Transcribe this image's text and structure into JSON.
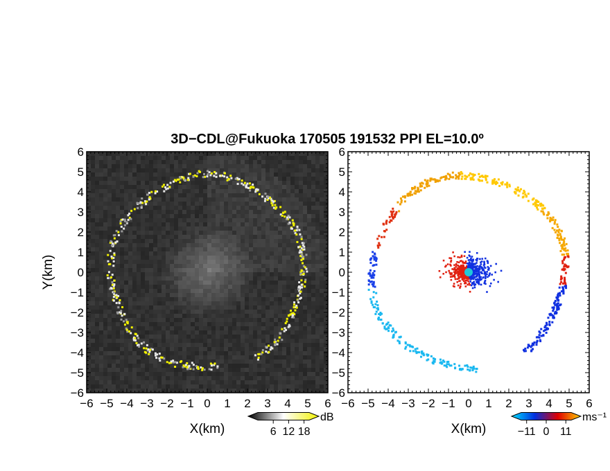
{
  "title": "3D−CDL@Fukuoka 170505 191532 PPI EL=10.0º",
  "chart_data": [
    {
      "type": "heatmap",
      "panel": "reflectivity",
      "xlabel": "X(km)",
      "ylabel": "Y(km)",
      "xlim": [
        -6,
        6
      ],
      "ylim": [
        -6,
        6
      ],
      "xticks": [
        "−6",
        "−5",
        "−4",
        "−3",
        "−2",
        "−1",
        "0",
        "1",
        "2",
        "3",
        "4",
        "5",
        "6"
      ],
      "yticks": [
        "−6",
        "−5",
        "−4",
        "−3",
        "−2",
        "−1",
        "0",
        "1",
        "2",
        "3",
        "4",
        "5",
        "6"
      ],
      "colorbar": {
        "unit": "dB",
        "ticks": [
          "6",
          "12",
          "18"
        ],
        "range": [
          0,
          20
        ],
        "colors": [
          "#000000",
          "#ffffff",
          "#f2f200"
        ]
      },
      "ring_radius_km": 4.8,
      "background": "#262626"
    },
    {
      "type": "scatter",
      "panel": "doppler_velocity",
      "xlabel": "X(km)",
      "xlim": [
        -6,
        6
      ],
      "ylim": [
        -6,
        6
      ],
      "xticks": [
        "−6",
        "−5",
        "−4",
        "−3",
        "−2",
        "−1",
        "0",
        "1",
        "2",
        "3",
        "4",
        "5",
        "6"
      ],
      "yticks": [
        "−6",
        "−5",
        "−4",
        "−3",
        "−2",
        "−1",
        "0",
        "1",
        "2",
        "3",
        "4",
        "5",
        "6"
      ],
      "colorbar": {
        "unit": "ms⁻¹",
        "ticks": [
          "−11",
          "0",
          "11"
        ],
        "range": [
          -14,
          14
        ],
        "colors": [
          "#00e0ff",
          "#0030e0",
          "#e00000",
          "#ffd000"
        ]
      },
      "ring_radius_km": 4.8,
      "center_marker": {
        "x": 0,
        "y": 0,
        "color": "#20c8d8"
      }
    }
  ]
}
